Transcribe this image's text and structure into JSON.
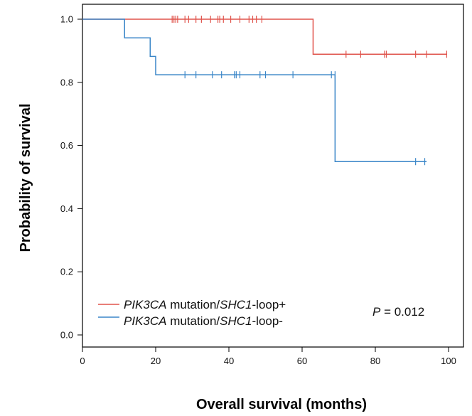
{
  "chart_data": {
    "type": "line",
    "subtype": "kaplan-meier",
    "title": "",
    "xlabel": "Overall survival (months)",
    "ylabel": "Probability of survival",
    "xlim": [
      0,
      100
    ],
    "ylim": [
      0.0,
      1.0
    ],
    "x_ticks": [
      0,
      20,
      40,
      60,
      80,
      100
    ],
    "x_tick_labels": [
      "0",
      "20",
      "40",
      "60",
      "80",
      "100"
    ],
    "y_ticks": [
      0.0,
      0.2,
      0.4,
      0.6,
      0.8,
      1.0
    ],
    "y_tick_labels": [
      "0.0",
      "0.2",
      "0.4",
      "0.6",
      "0.8",
      "1.0"
    ],
    "grid": false,
    "legend_position": "bottom-left",
    "series": [
      {
        "name": "PIK3CA mutation/SHC1-loop+",
        "legend_italic": "PIK3CA",
        "legend_mid": " mutation/",
        "legend_italic2": "SHC1",
        "legend_tail": "-loop+",
        "color": "#e0544c",
        "steps": [
          [
            0,
            1.0
          ],
          [
            63,
            0.889
          ]
        ],
        "end_x": 99.5,
        "censored": [
          [
            24.5,
            1.0
          ],
          [
            25.0,
            1.0
          ],
          [
            25.5,
            1.0
          ],
          [
            26.0,
            1.0
          ],
          [
            28.0,
            1.0
          ],
          [
            29.0,
            1.0
          ],
          [
            31.0,
            1.0
          ],
          [
            32.5,
            1.0
          ],
          [
            35.0,
            1.0
          ],
          [
            37.0,
            1.0
          ],
          [
            37.5,
            1.0
          ],
          [
            38.5,
            1.0
          ],
          [
            40.5,
            1.0
          ],
          [
            43.0,
            1.0
          ],
          [
            45.5,
            1.0
          ],
          [
            46.5,
            1.0
          ],
          [
            47.5,
            1.0
          ],
          [
            49.0,
            1.0
          ],
          [
            72.0,
            0.889
          ],
          [
            76.0,
            0.889
          ],
          [
            82.5,
            0.889
          ],
          [
            83.0,
            0.889
          ],
          [
            91.0,
            0.889
          ],
          [
            94.0,
            0.889
          ],
          [
            99.5,
            0.889
          ]
        ]
      },
      {
        "name": "PIK3CA mutation/SHC1-loop-",
        "legend_italic": "PIK3CA",
        "legend_mid": " mutation/",
        "legend_italic2": "SHC1",
        "legend_tail": "-loop-",
        "color": "#3a86c8",
        "steps": [
          [
            0,
            1.0
          ],
          [
            11.5,
            0.941
          ],
          [
            18.5,
            0.882
          ],
          [
            20.0,
            0.824
          ],
          [
            69.0,
            0.549
          ]
        ],
        "end_x": 94.0,
        "censored": [
          [
            28.0,
            0.824
          ],
          [
            31.0,
            0.824
          ],
          [
            35.5,
            0.824
          ],
          [
            38.0,
            0.824
          ],
          [
            41.5,
            0.824
          ],
          [
            42.0,
            0.824
          ],
          [
            43.0,
            0.824
          ],
          [
            48.5,
            0.824
          ],
          [
            50.0,
            0.824
          ],
          [
            57.5,
            0.824
          ],
          [
            68.0,
            0.824
          ],
          [
            69.0,
            0.824
          ],
          [
            91.0,
            0.549
          ],
          [
            93.5,
            0.549
          ]
        ]
      }
    ],
    "annotation": {
      "p_label": "P",
      "p_text": " = 0.012"
    }
  }
}
